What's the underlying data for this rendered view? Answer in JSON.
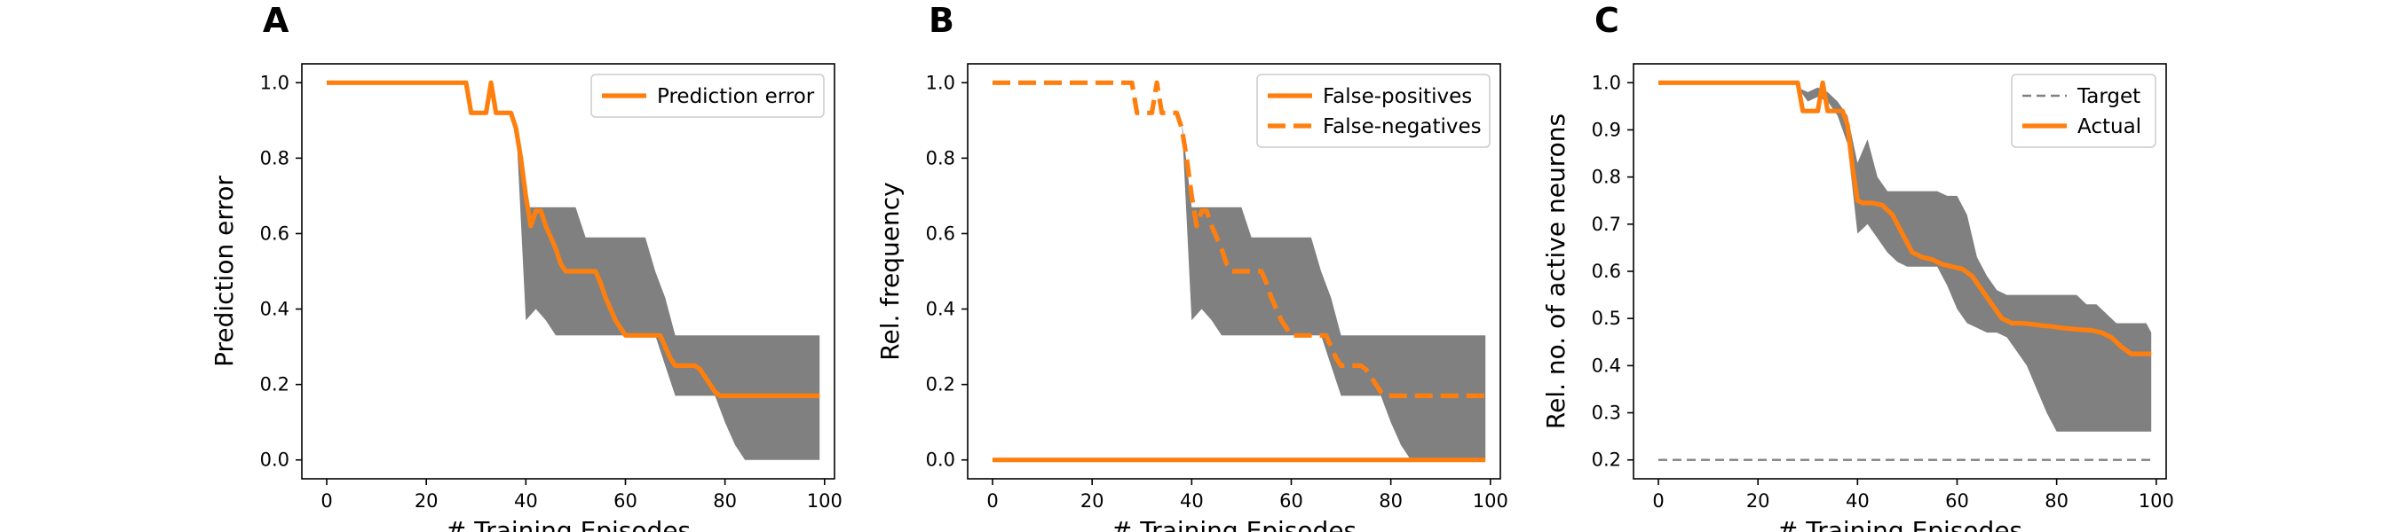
{
  "colors": {
    "series": "#ff7f0e",
    "band": "#808080",
    "target": "#808080"
  },
  "chart_data": [
    {
      "type": "line",
      "panel_letter": "A",
      "xlabel": "# Training Episodes",
      "ylabel": "Prediction error",
      "xlim": [
        -5,
        102
      ],
      "ylim": [
        -0.05,
        1.05
      ],
      "xticks": [
        0,
        20,
        40,
        60,
        80,
        100
      ],
      "yticks": [
        0.0,
        0.2,
        0.4,
        0.6,
        0.8,
        1.0
      ],
      "ytick_decimals": 1,
      "legend_position": "top-right",
      "band": {
        "x": [
          38,
          40,
          42,
          44,
          46,
          48,
          50,
          52,
          54,
          56,
          58,
          60,
          62,
          64,
          66,
          68,
          70,
          72,
          74,
          76,
          78,
          80,
          82,
          84,
          86,
          88,
          90,
          92,
          94,
          96,
          98,
          99
        ],
        "upper": [
          0.9,
          0.67,
          0.67,
          0.67,
          0.67,
          0.67,
          0.67,
          0.59,
          0.59,
          0.59,
          0.59,
          0.59,
          0.59,
          0.59,
          0.5,
          0.43,
          0.33,
          0.33,
          0.33,
          0.33,
          0.33,
          0.33,
          0.33,
          0.33,
          0.33,
          0.33,
          0.33,
          0.33,
          0.33,
          0.33,
          0.33,
          0.33
        ],
        "lower": [
          0.9,
          0.37,
          0.4,
          0.37,
          0.33,
          0.33,
          0.33,
          0.33,
          0.33,
          0.33,
          0.33,
          0.33,
          0.33,
          0.33,
          0.33,
          0.25,
          0.17,
          0.17,
          0.17,
          0.17,
          0.17,
          0.1,
          0.04,
          0.0,
          0.0,
          0.0,
          0.0,
          0.0,
          0.0,
          0.0,
          0.0,
          0.0
        ]
      },
      "series": [
        {
          "name": "Prediction error",
          "style": "solid",
          "x": [
            0,
            28,
            29,
            32,
            33,
            34,
            37,
            38,
            39,
            40,
            41,
            42,
            43,
            44,
            46,
            47,
            48,
            49,
            50,
            54,
            55,
            56,
            57,
            58,
            59,
            60,
            62,
            64,
            66,
            67,
            68,
            69,
            70,
            72,
            74,
            75,
            76,
            77,
            78,
            79,
            80,
            99
          ],
          "y": [
            1.0,
            1.0,
            0.92,
            0.92,
            1.0,
            0.92,
            0.92,
            0.88,
            0.8,
            0.7,
            0.62,
            0.66,
            0.66,
            0.62,
            0.56,
            0.52,
            0.5,
            0.5,
            0.5,
            0.5,
            0.47,
            0.43,
            0.4,
            0.37,
            0.35,
            0.33,
            0.33,
            0.33,
            0.33,
            0.33,
            0.3,
            0.27,
            0.25,
            0.25,
            0.25,
            0.24,
            0.22,
            0.2,
            0.18,
            0.17,
            0.17,
            0.17
          ]
        }
      ]
    },
    {
      "type": "line",
      "panel_letter": "B",
      "xlabel": "# Training Episodes",
      "ylabel": "Rel. frequency",
      "xlim": [
        -5,
        102
      ],
      "ylim": [
        -0.05,
        1.05
      ],
      "xticks": [
        0,
        20,
        40,
        60,
        80,
        100
      ],
      "yticks": [
        0.0,
        0.2,
        0.4,
        0.6,
        0.8,
        1.0
      ],
      "ytick_decimals": 1,
      "legend_position": "top-right",
      "band": {
        "x": [
          38,
          40,
          42,
          44,
          46,
          48,
          50,
          52,
          54,
          56,
          58,
          60,
          62,
          64,
          66,
          68,
          70,
          72,
          74,
          76,
          78,
          80,
          82,
          84,
          86,
          88,
          90,
          92,
          94,
          96,
          98,
          99
        ],
        "upper": [
          0.9,
          0.67,
          0.67,
          0.67,
          0.67,
          0.67,
          0.67,
          0.59,
          0.59,
          0.59,
          0.59,
          0.59,
          0.59,
          0.59,
          0.5,
          0.43,
          0.33,
          0.33,
          0.33,
          0.33,
          0.33,
          0.33,
          0.33,
          0.33,
          0.33,
          0.33,
          0.33,
          0.33,
          0.33,
          0.33,
          0.33,
          0.33
        ],
        "lower": [
          0.9,
          0.37,
          0.4,
          0.37,
          0.33,
          0.33,
          0.33,
          0.33,
          0.33,
          0.33,
          0.33,
          0.33,
          0.33,
          0.33,
          0.33,
          0.25,
          0.17,
          0.17,
          0.17,
          0.17,
          0.17,
          0.1,
          0.04,
          0.0,
          0.0,
          0.0,
          0.0,
          0.0,
          0.0,
          0.0,
          0.0,
          0.0
        ]
      },
      "series": [
        {
          "name": "False-positives",
          "style": "solid",
          "x": [
            0,
            99
          ],
          "y": [
            0.0,
            0.0
          ]
        },
        {
          "name": "False-negatives",
          "style": "dashed",
          "x": [
            0,
            28,
            29,
            32,
            33,
            34,
            37,
            38,
            39,
            40,
            41,
            42,
            43,
            44,
            46,
            47,
            48,
            49,
            50,
            54,
            55,
            56,
            57,
            58,
            59,
            60,
            62,
            64,
            66,
            67,
            68,
            69,
            70,
            72,
            74,
            75,
            76,
            77,
            78,
            79,
            80,
            99
          ],
          "y": [
            1.0,
            1.0,
            0.92,
            0.92,
            1.0,
            0.92,
            0.92,
            0.88,
            0.8,
            0.7,
            0.62,
            0.66,
            0.66,
            0.62,
            0.56,
            0.52,
            0.5,
            0.5,
            0.5,
            0.5,
            0.47,
            0.43,
            0.4,
            0.37,
            0.35,
            0.33,
            0.33,
            0.33,
            0.33,
            0.33,
            0.3,
            0.27,
            0.25,
            0.25,
            0.25,
            0.24,
            0.22,
            0.2,
            0.18,
            0.17,
            0.17,
            0.17
          ]
        }
      ]
    },
    {
      "type": "line",
      "panel_letter": "C",
      "xlabel": "# Training Episodes",
      "ylabel": "Rel. no. of active neurons",
      "xlim": [
        -5,
        102
      ],
      "ylim": [
        0.16,
        1.04
      ],
      "xticks": [
        0,
        20,
        40,
        60,
        80,
        100
      ],
      "yticks": [
        0.2,
        0.3,
        0.4,
        0.5,
        0.6,
        0.7,
        0.8,
        0.9,
        1.0
      ],
      "ytick_decimals": 1,
      "legend_position": "top-right",
      "band": {
        "x": [
          28,
          30,
          32,
          34,
          36,
          38,
          40,
          42,
          44,
          46,
          48,
          50,
          52,
          54,
          56,
          58,
          60,
          62,
          64,
          66,
          68,
          70,
          72,
          74,
          76,
          78,
          80,
          82,
          84,
          86,
          88,
          90,
          92,
          94,
          96,
          98,
          99
        ],
        "upper": [
          0.99,
          0.98,
          0.99,
          0.98,
          0.96,
          0.93,
          0.83,
          0.88,
          0.8,
          0.77,
          0.77,
          0.77,
          0.77,
          0.77,
          0.77,
          0.76,
          0.76,
          0.72,
          0.63,
          0.59,
          0.56,
          0.55,
          0.55,
          0.55,
          0.55,
          0.55,
          0.55,
          0.55,
          0.55,
          0.53,
          0.53,
          0.51,
          0.49,
          0.49,
          0.49,
          0.49,
          0.47
        ],
        "lower": [
          0.99,
          0.96,
          0.97,
          0.96,
          0.93,
          0.87,
          0.68,
          0.7,
          0.67,
          0.64,
          0.62,
          0.61,
          0.61,
          0.61,
          0.61,
          0.57,
          0.52,
          0.49,
          0.48,
          0.47,
          0.47,
          0.46,
          0.43,
          0.4,
          0.35,
          0.3,
          0.26,
          0.26,
          0.26,
          0.26,
          0.26,
          0.26,
          0.26,
          0.26,
          0.26,
          0.26,
          0.26
        ]
      },
      "series": [
        {
          "name": "Target",
          "style": "thin-dashed",
          "x": [
            0,
            99
          ],
          "y": [
            0.2,
            0.2
          ]
        },
        {
          "name": "Actual",
          "style": "solid",
          "x": [
            0,
            28,
            29,
            32,
            33,
            34,
            37,
            38,
            39,
            40,
            41,
            43,
            45,
            47,
            49,
            51,
            53,
            55,
            57,
            59,
            61,
            63,
            65,
            67,
            69,
            71,
            73,
            75,
            77,
            79,
            81,
            83,
            85,
            87,
            89,
            91,
            93,
            95,
            97,
            99
          ],
          "y": [
            1.0,
            1.0,
            0.94,
            0.94,
            1.0,
            0.94,
            0.94,
            0.91,
            0.82,
            0.75,
            0.745,
            0.745,
            0.74,
            0.72,
            0.68,
            0.64,
            0.63,
            0.625,
            0.615,
            0.61,
            0.605,
            0.59,
            0.56,
            0.53,
            0.5,
            0.49,
            0.49,
            0.488,
            0.485,
            0.483,
            0.48,
            0.478,
            0.476,
            0.475,
            0.47,
            0.46,
            0.44,
            0.425,
            0.425,
            0.425
          ]
        }
      ]
    }
  ]
}
